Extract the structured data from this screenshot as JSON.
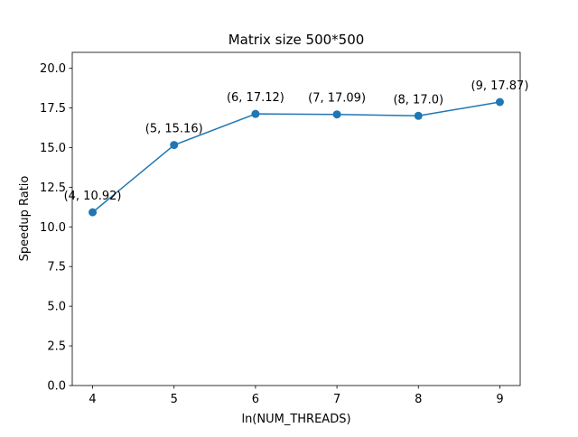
{
  "chart_data": {
    "type": "line",
    "title": "Matrix size 500*500",
    "xlabel": "ln(NUM_THREADS)",
    "ylabel": "Speedup Ratio",
    "x": [
      4,
      5,
      6,
      7,
      8,
      9
    ],
    "series": [
      {
        "values": [
          10.92,
          15.16,
          17.12,
          17.09,
          17.0,
          17.87
        ],
        "color": "#1f77b4"
      }
    ],
    "point_labels": [
      "(4, 10.92)",
      "(5, 15.16)",
      "(6, 17.12)",
      "(7, 17.09)",
      "(8, 17.0)",
      "(9, 17.87)"
    ],
    "xticks": [
      4,
      5,
      6,
      7,
      8,
      9
    ],
    "xtick_labels": [
      "4",
      "5",
      "6",
      "7",
      "8",
      "9"
    ],
    "yticks": [
      0,
      2.5,
      5,
      7.5,
      10,
      12.5,
      15,
      17.5,
      20
    ],
    "ytick_labels": [
      "0.0",
      "2.5",
      "5.0",
      "7.5",
      "10.0",
      "12.5",
      "15.0",
      "17.5",
      "20.0"
    ],
    "xlim": [
      3.75,
      9.25
    ],
    "ylim": [
      0,
      21
    ],
    "grid": false,
    "legend": "none"
  }
}
